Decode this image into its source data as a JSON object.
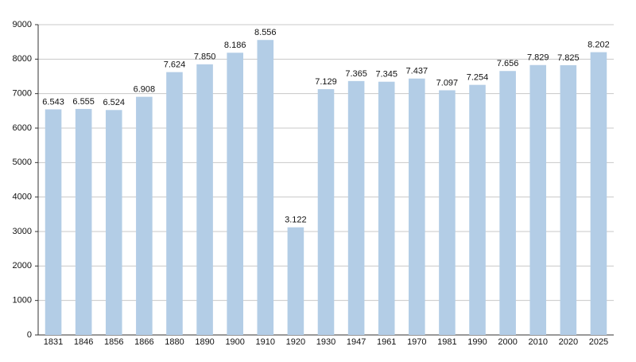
{
  "chart_data": {
    "type": "bar",
    "categories": [
      "1831",
      "1846",
      "1856",
      "1866",
      "1880",
      "1890",
      "1900",
      "1910",
      "1920",
      "1930",
      "1947",
      "1961",
      "1970",
      "1981",
      "1990",
      "2000",
      "2010",
      "2020",
      "2025"
    ],
    "values": [
      6543,
      6555,
      6524,
      6908,
      7624,
      7850,
      8186,
      8556,
      3122,
      7129,
      7365,
      7345,
      7437,
      7097,
      7254,
      7656,
      7829,
      7825,
      8202
    ],
    "value_labels": [
      "6.543",
      "6.555",
      "6.524",
      "6.908",
      "7.624",
      "7.850",
      "8.186",
      "8.556",
      "3.122",
      "7.129",
      "7.365",
      "7.345",
      "7.437",
      "7.097",
      "7.254",
      "7.656",
      "7.829",
      "7.825",
      "8.202"
    ],
    "color": "#b3cde6",
    "ylim": [
      0,
      9000
    ],
    "yticks": [
      0,
      1000,
      2000,
      3000,
      4000,
      5000,
      6000,
      7000,
      8000,
      9000
    ],
    "grid": true
  }
}
